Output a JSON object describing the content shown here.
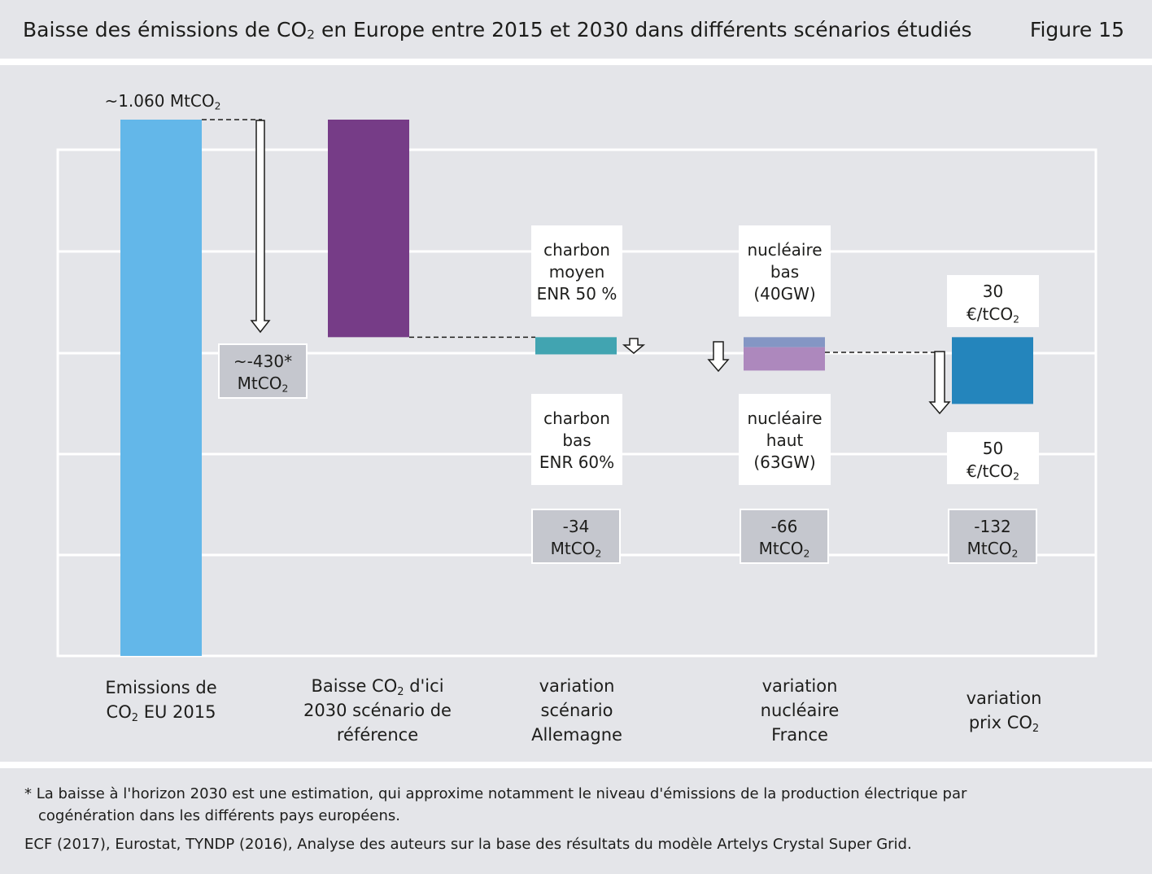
{
  "header": {
    "title_main": "Baisse des émissions de CO",
    "title_sub": "2",
    "title_rest": " en Europe entre 2015 et 2030 dans différents scénarios étudiés",
    "figure_label": "Figure 15"
  },
  "chart_data": {
    "type": "waterfall",
    "unit": "MtCO₂",
    "title": "Baisse des émissions de CO₂ en Europe entre 2015 et 2030 dans différents scénarios étudiés",
    "ylim": [
      0,
      1060
    ],
    "grid": true,
    "total_label": "~1.060 MtCO₂",
    "categories": [
      "Emissions de CO₂ EU 2015",
      "Baisse CO₂ d'ici 2030 scénario de référence",
      "variation scénario Allemagne",
      "variation nucléaire France",
      "variation prix CO₂"
    ],
    "bars": [
      {
        "name": "Emissions de CO₂ EU 2015",
        "start": 0,
        "end": 1060,
        "color": "#63b7e9"
      },
      {
        "name": "Baisse CO₂ d'ici 2030 scénario de référence",
        "start": 630,
        "end": 1060,
        "color": "#763c87"
      },
      {
        "name": "variation scénario Allemagne",
        "start": 596,
        "end": 630,
        "color": "#41a4b1"
      },
      {
        "name": "variation nucléaire France",
        "start": 564,
        "end": 630,
        "color": "#8496c4",
        "color_lower": "#ad88bd"
      },
      {
        "name": "variation prix CO₂",
        "start": 498,
        "end": 630,
        "color": "#2485bc"
      }
    ],
    "deltas": [
      {
        "value": "~-430*",
        "unit": "MtCO₂"
      },
      {
        "value": "-34",
        "unit": "MtCO₂"
      },
      {
        "value": "-66",
        "unit": "MtCO₂"
      },
      {
        "value": "-132",
        "unit": "MtCO₂"
      }
    ],
    "scenario_labels": {
      "allemagne_high": [
        "charbon",
        "moyen",
        "ENR 50 %"
      ],
      "allemagne_low": [
        "charbon",
        "bas",
        "ENR 60%"
      ],
      "france_high": [
        "nucléaire",
        "bas",
        "(40GW)"
      ],
      "france_low": [
        "nucléaire",
        "haut",
        "(63GW)"
      ],
      "prix_high": [
        "30",
        "€/tCO₂"
      ],
      "prix_low": [
        "50",
        "€/tCO₂"
      ]
    },
    "xlabels": [
      [
        "Emissions de",
        "CO₂ EU 2015"
      ],
      [
        "Baisse CO₂ d'ici",
        "2030 scénario de",
        "référence"
      ],
      [
        "variation",
        "scénario",
        "Allemagne"
      ],
      [
        "variation",
        "nucléaire",
        "France"
      ],
      [
        "variation",
        "prix CO₂"
      ]
    ]
  },
  "footer": {
    "note_line1": "* La baisse à l'horizon 2030 est une estimation, qui approxime notamment le niveau d'émissions de la production électrique par",
    "note_line2": "cogénération dans les différents pays européens.",
    "source": "ECF (2017), Eurostat, TYNDP (2016), Analyse des auteurs sur la base des résultats du modèle Artelys Crystal Super Grid."
  }
}
